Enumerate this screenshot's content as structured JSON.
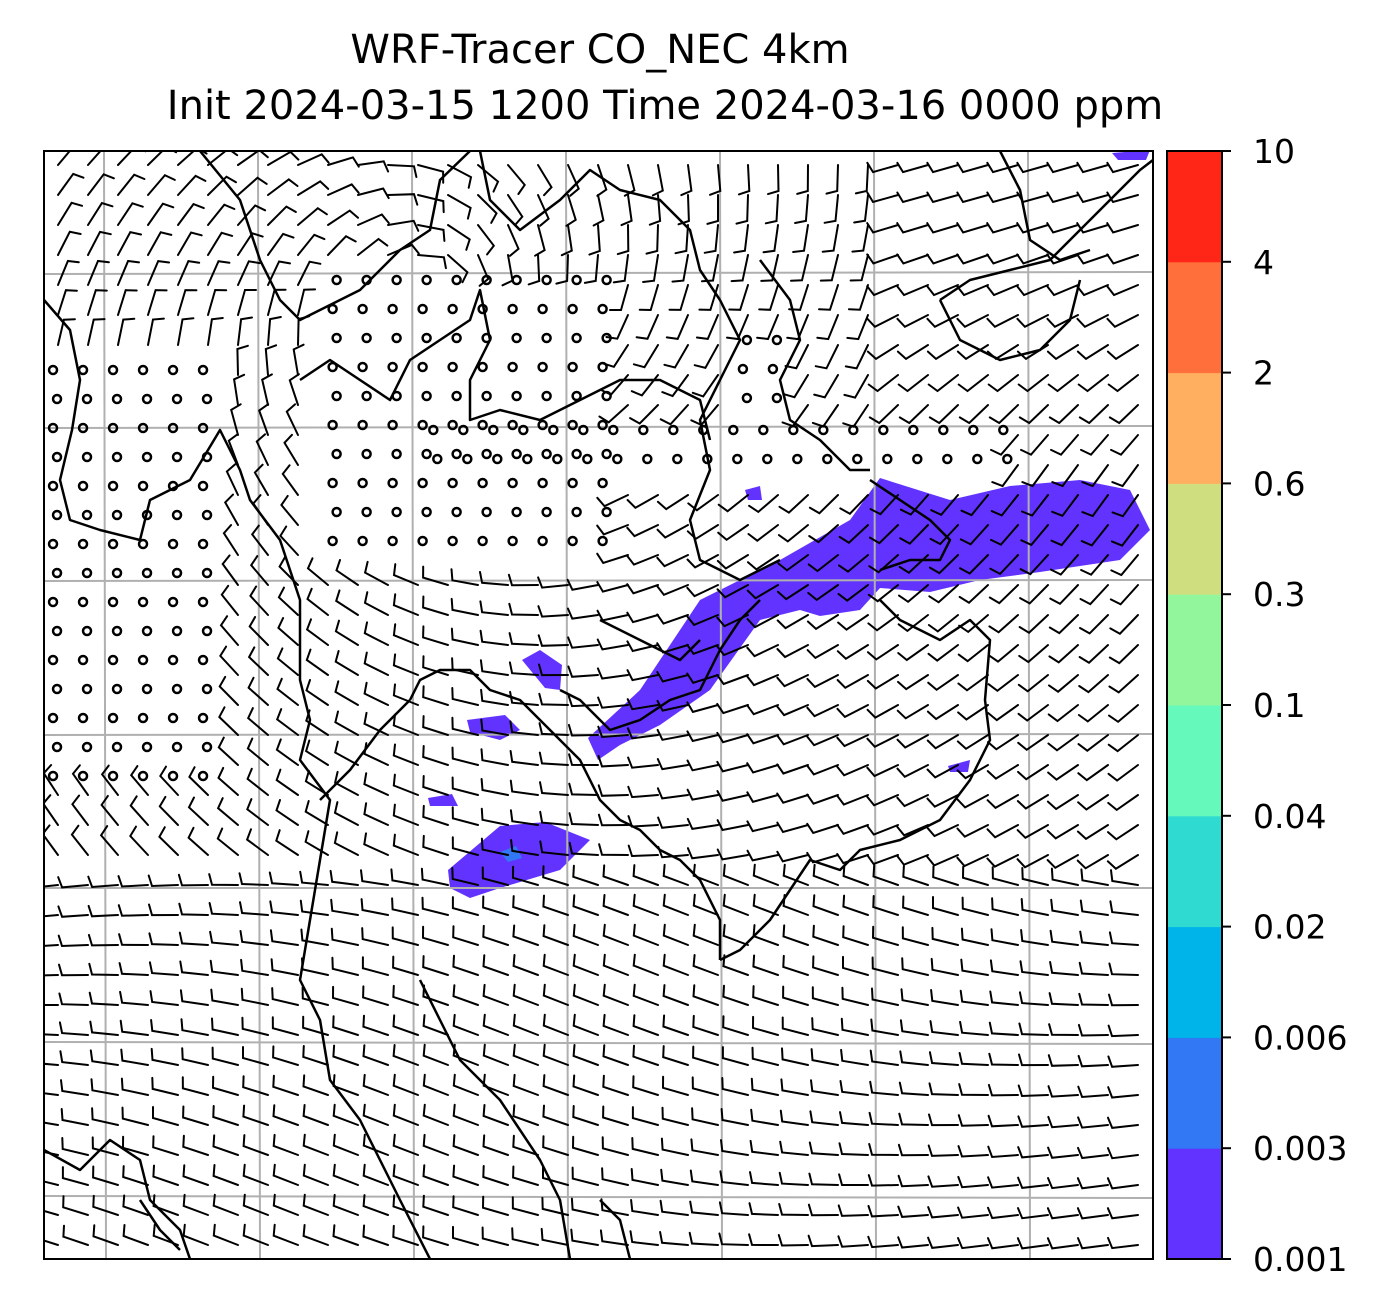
{
  "title_line1": "WRF-Tracer CO_NEC 4km",
  "title_line2": "Init 2024-03-15 1200 Time 2024-03-16 0000 ppm",
  "colorbar": {
    "ticks": [
      "0.001",
      "0.003",
      "0.006",
      "0.02",
      "0.04",
      "0.1",
      "0.3",
      "0.6",
      "2",
      "4",
      "10"
    ],
    "colors": [
      "#6233ff",
      "#3277f3",
      "#00b4ea",
      "#2fdbd0",
      "#65f9bc",
      "#91f69c",
      "#cfdf80",
      "#ffaf5f",
      "#ff6f3c",
      "#ff2618"
    ]
  },
  "map": {
    "gridlines": "on",
    "plume_color": "#6233ff",
    "plume_core_color": "#3277f3"
  }
}
